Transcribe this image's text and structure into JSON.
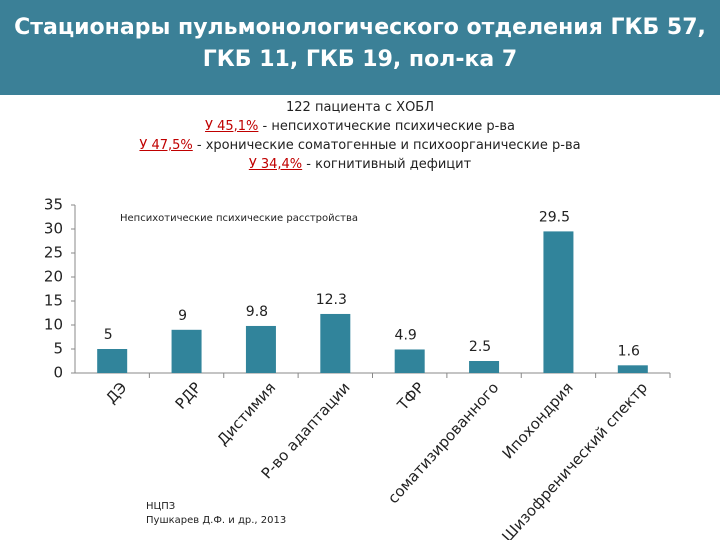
{
  "chart_data": {
    "type": "bar",
    "title": "Стационары пульмонологического отделения ГКБ 57, ГКБ 11, ГКБ 19, пол-ка 7",
    "subtitle": "122 пациента с ХОБЛ",
    "notes": [
      {
        "highlight": "У 45,1%",
        "text": " - непсихотические психические р-ва"
      },
      {
        "highlight": "У 47,5%",
        "text": " - хронические соматогенные и психоорганические  р-ва"
      },
      {
        "highlight": "У 34,4%",
        "text": " - когнитивный дефицит"
      }
    ],
    "annotation": "Непсихотические психические расстройства",
    "source": [
      "НЦПЗ",
      "Пушкарев Д.Ф. и др., 2013"
    ],
    "categories": [
      "ДЭ",
      "РДР",
      "Дистимия",
      "Р-во адаптации",
      "ТФР",
      "соматизированного",
      "Ипохондрия",
      "Шизофренический спектр"
    ],
    "values": [
      5,
      9,
      9.8,
      12.3,
      4.9,
      2.5,
      29.5,
      1.6
    ],
    "color": "#31849b",
    "ylim": [
      0,
      35
    ],
    "yticks": [
      0,
      5,
      10,
      15,
      20,
      25,
      30,
      35
    ],
    "grid": false
  }
}
